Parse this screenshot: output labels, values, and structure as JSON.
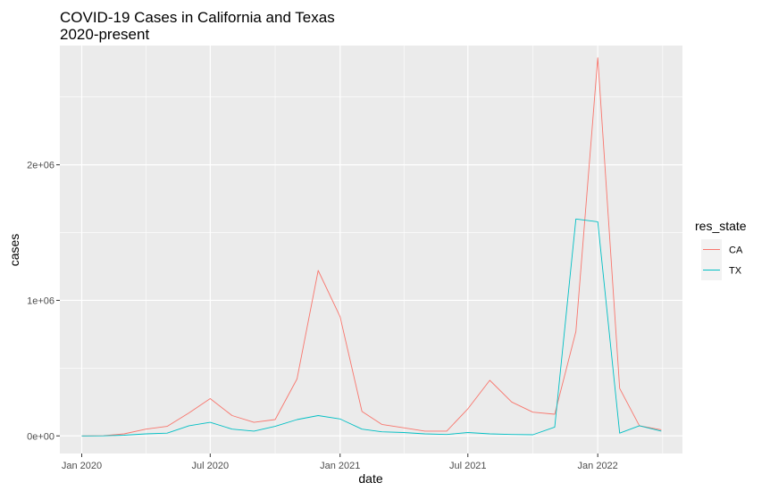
{
  "chart_data": {
    "type": "line",
    "title": "COVID-19 Cases in California and Texas",
    "subtitle": "2020-present",
    "xlabel": "date",
    "ylabel": "cases",
    "xlim": [
      "2019-12-01",
      "2022-05-01"
    ],
    "ylim": [
      -130000,
      2880000
    ],
    "x_ticks": [
      {
        "date": "2020-01-01",
        "label": "Jan 2020"
      },
      {
        "date": "2020-07-01",
        "label": "Jul 2020"
      },
      {
        "date": "2021-01-01",
        "label": "Jan 2021"
      },
      {
        "date": "2021-07-01",
        "label": "Jul 2021"
      },
      {
        "date": "2022-01-01",
        "label": "Jan 2022"
      }
    ],
    "y_ticks": [
      {
        "value": 0,
        "label": "0e+00"
      },
      {
        "value": 1000000,
        "label": "1e+06"
      },
      {
        "value": 2000000,
        "label": "2e+06"
      }
    ],
    "grid": true,
    "legend": {
      "title": "res_state",
      "position": "right"
    },
    "x": [
      "2020-01-01",
      "2020-02-01",
      "2020-03-01",
      "2020-04-01",
      "2020-05-01",
      "2020-06-01",
      "2020-07-01",
      "2020-08-01",
      "2020-09-01",
      "2020-10-01",
      "2020-11-01",
      "2020-12-01",
      "2021-01-01",
      "2021-02-01",
      "2021-03-01",
      "2021-04-01",
      "2021-05-01",
      "2021-06-01",
      "2021-07-01",
      "2021-08-01",
      "2021-09-01",
      "2021-10-01",
      "2021-11-01",
      "2021-12-01",
      "2022-01-01",
      "2022-02-01",
      "2022-03-01",
      "2022-04-01"
    ],
    "series": [
      {
        "name": "CA",
        "color": "#F8766D",
        "values": [
          0,
          1000,
          15000,
          50000,
          70000,
          170000,
          275000,
          150000,
          100000,
          120000,
          420000,
          1220000,
          880000,
          180000,
          85000,
          60000,
          35000,
          35000,
          200000,
          410000,
          250000,
          175000,
          160000,
          770000,
          2790000,
          350000,
          75000,
          45000
        ]
      },
      {
        "name": "TX",
        "color": "#00BFC4",
        "values": [
          0,
          500,
          5000,
          15000,
          20000,
          75000,
          100000,
          50000,
          35000,
          70000,
          120000,
          150000,
          125000,
          50000,
          30000,
          25000,
          15000,
          10000,
          25000,
          15000,
          10000,
          8000,
          65000,
          1600000,
          1580000,
          20000,
          75000,
          35000
        ]
      }
    ]
  }
}
